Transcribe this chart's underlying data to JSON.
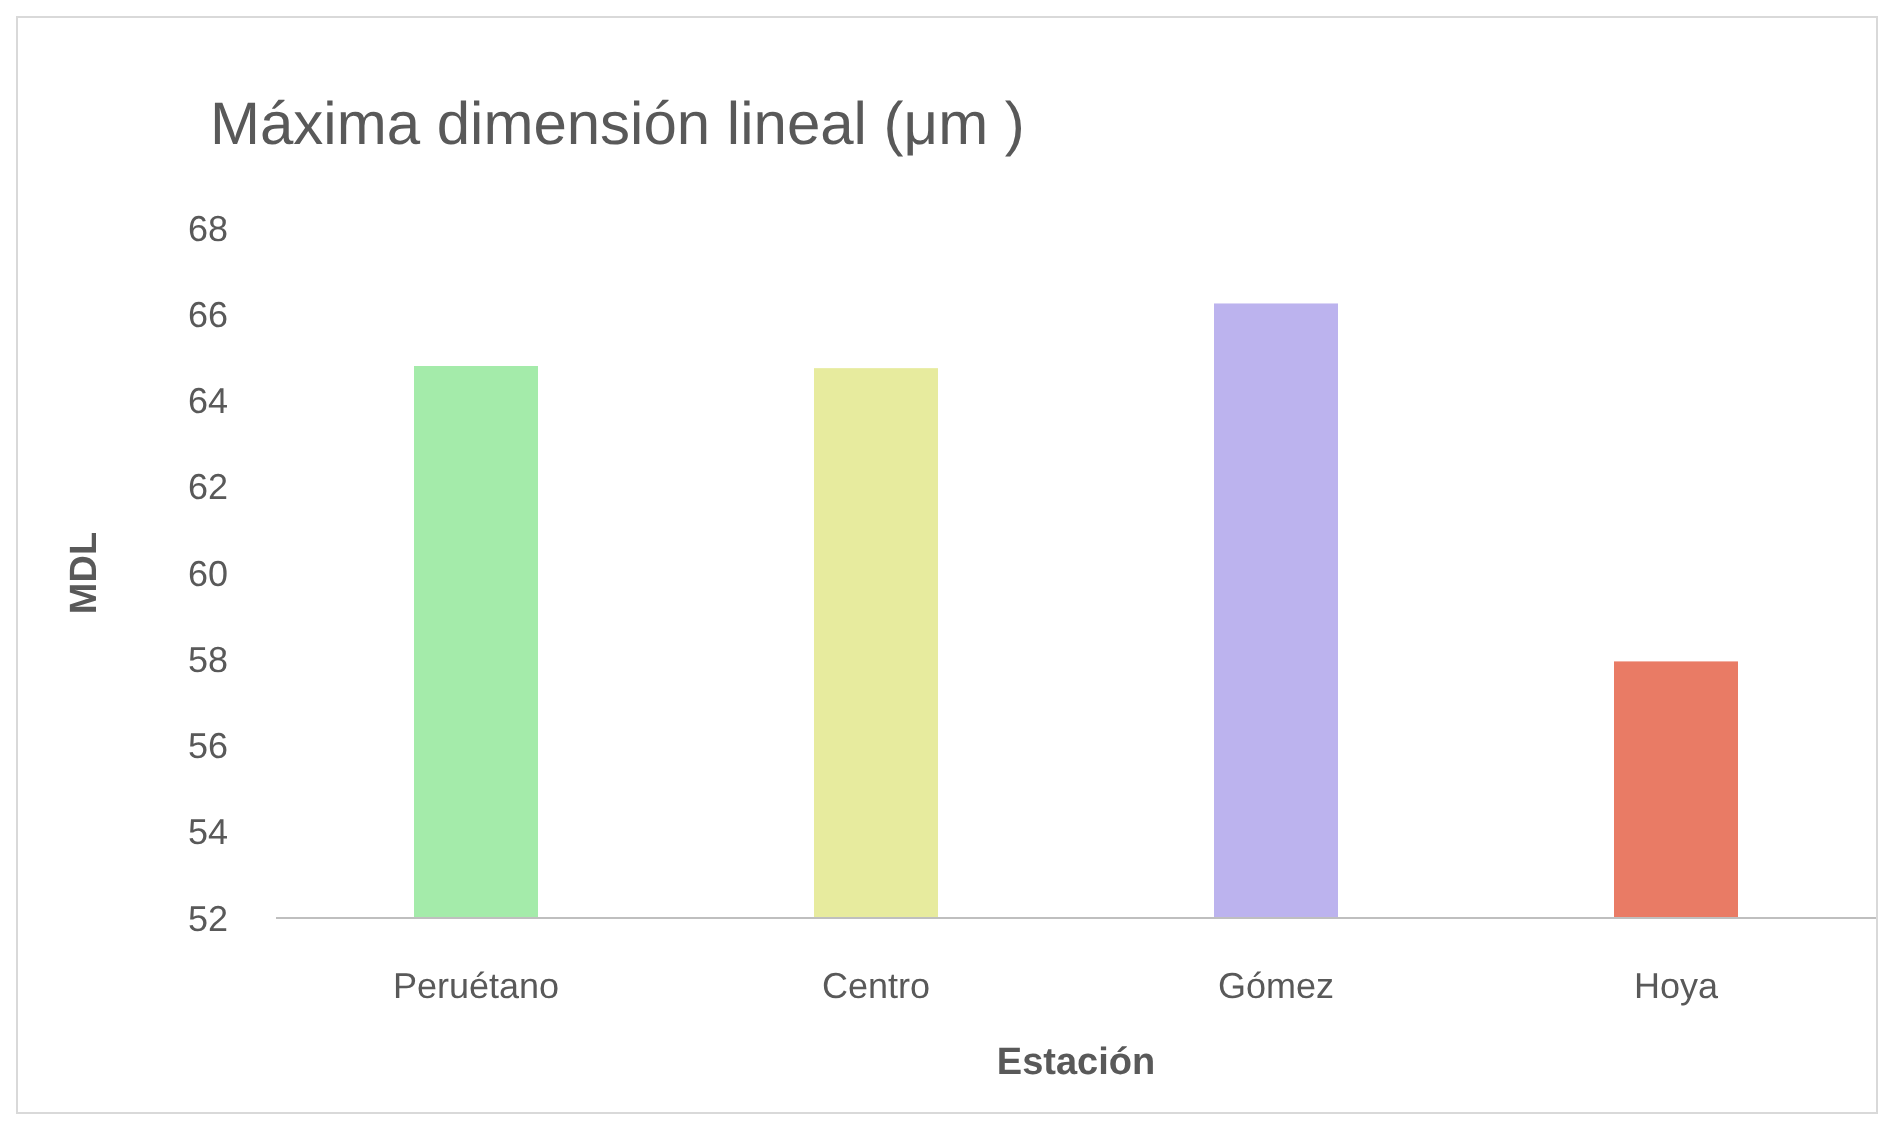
{
  "chart_data": {
    "type": "bar",
    "title": "Máxima dimensión lineal (μm )",
    "xlabel": "Estación",
    "ylabel": "MDL",
    "categories": [
      "Peruétano",
      "Centro",
      "Gómez",
      "Hoya"
    ],
    "values": [
      64.8,
      64.75,
      66.25,
      57.95
    ],
    "colors": [
      "#a4ebaa",
      "#e7eb9e",
      "#bcb3ee",
      "#e97b65"
    ],
    "ylim": [
      52,
      68
    ],
    "yticks": [
      52,
      54,
      56,
      58,
      60,
      62,
      64,
      66,
      68
    ],
    "grid": false
  }
}
